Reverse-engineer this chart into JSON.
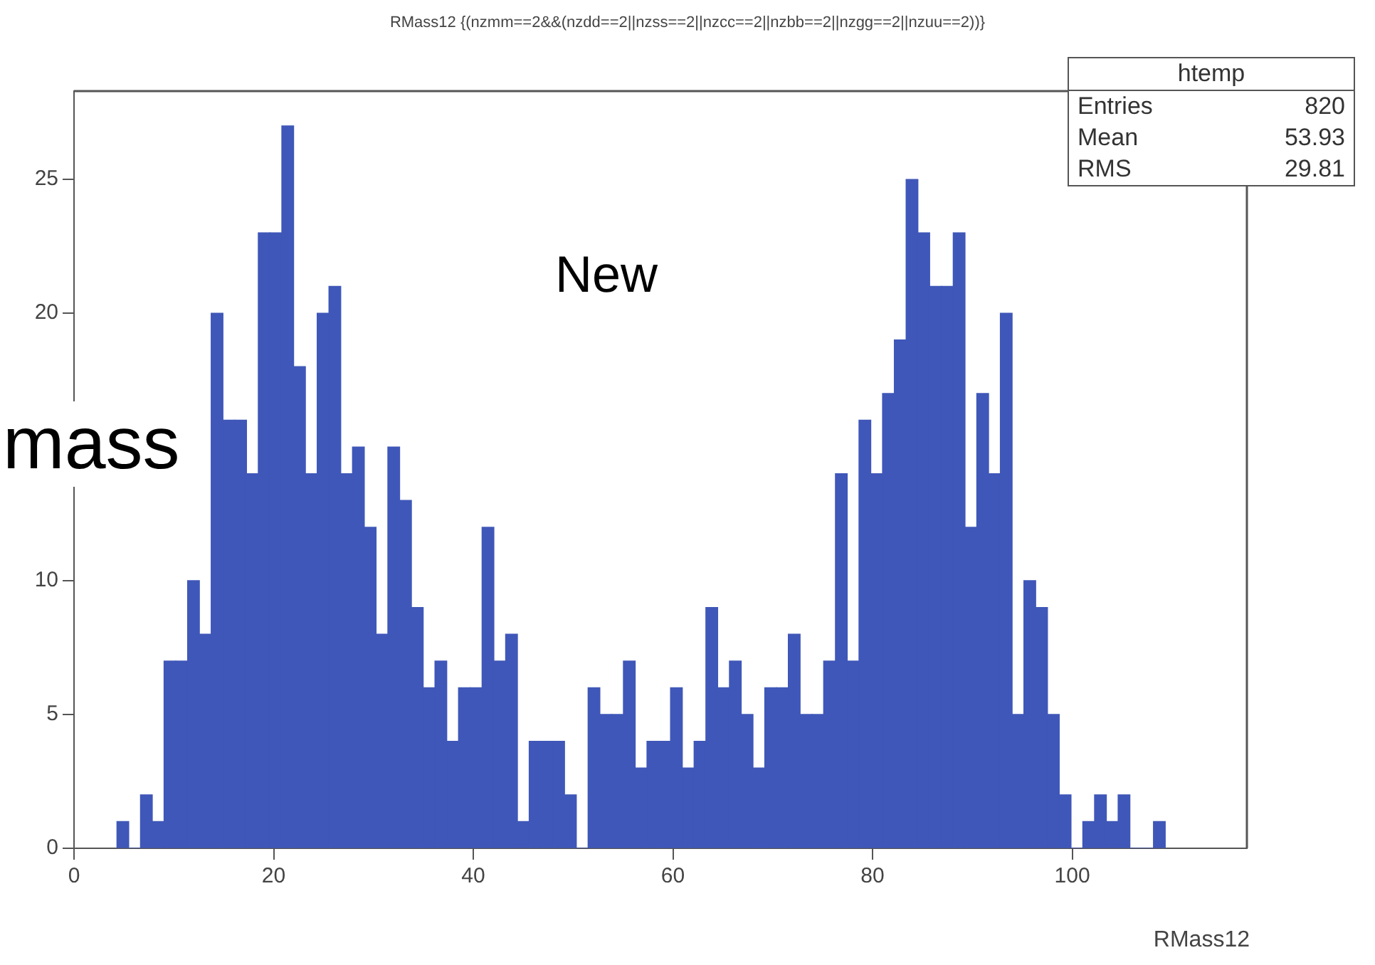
{
  "chart_data": {
    "type": "histogram",
    "title": "RMass12 {(nzmm==2&&(nzdd==2||nzss==2||nzcc==2||nzbb==2||nzgg==2||nzuu==2))}",
    "xlabel": "RMass12",
    "bins": [
      4.3,
      5.48,
      6.66,
      7.84,
      9.02,
      10.2,
      11.38,
      12.56,
      13.74,
      14.92,
      16.1,
      17.28,
      18.46,
      19.64,
      20.82,
      22,
      23.18,
      24.36,
      25.54,
      26.72,
      27.9,
      29.08,
      30.26,
      31.44,
      32.62,
      33.8,
      34.98,
      36.16,
      37.34,
      38.52,
      39.7,
      40.88,
      42.06,
      43.24,
      44.42,
      45.6,
      46.78,
      47.96,
      49.14,
      50.32,
      51.5,
      52.68,
      53.86,
      55.04,
      56.22,
      57.4,
      58.58,
      59.76,
      60.94,
      62.12,
      63.3,
      64.48,
      65.66,
      66.84,
      68.02,
      69.2,
      70.38,
      71.56,
      72.74,
      73.92,
      75.1,
      76.28,
      77.46,
      78.64,
      79.82,
      81,
      82.18,
      83.36,
      84.54,
      85.72,
      86.9,
      88.08,
      89.26,
      90.44,
      91.62,
      92.8,
      93.98,
      95.16,
      96.34,
      97.52,
      98.7,
      99.88,
      101.06,
      102.24,
      103.42,
      104.6,
      105.78,
      106.96,
      108.14,
      109.32
    ],
    "values": [
      1,
      0,
      2,
      1,
      7,
      7,
      10,
      8,
      20,
      16,
      16,
      14,
      23,
      23,
      27,
      18,
      14,
      20,
      21,
      14,
      15,
      12,
      8,
      15,
      13,
      9,
      6,
      7,
      4,
      6,
      6,
      12,
      7,
      8,
      1,
      4,
      4,
      4,
      2,
      0,
      6,
      5,
      5,
      7,
      3,
      4,
      4,
      6,
      3,
      4,
      9,
      6,
      7,
      5,
      3,
      6,
      6,
      8,
      5,
      5,
      7,
      14,
      7,
      16,
      14,
      17,
      19,
      25,
      23,
      21,
      21,
      23,
      12,
      17,
      14,
      20,
      5,
      10,
      9,
      5,
      2,
      0,
      1,
      2,
      1,
      2,
      0,
      0,
      1
    ],
    "color": "#3f57b8",
    "xlim": [
      0,
      117.5
    ],
    "xticks": [
      0,
      20,
      40,
      60,
      80,
      100
    ],
    "ylim": [
      0,
      28.3
    ],
    "yticks": [
      0,
      5,
      10,
      {
        "value": 15,
        "label": null
      },
      20,
      25
    ],
    "grid": false,
    "legend": false,
    "annotations": [
      "htemp",
      "Entries",
      "820",
      "Mean",
      "53.93",
      "RMS",
      "29.81",
      "New",
      "mass"
    ]
  }
}
